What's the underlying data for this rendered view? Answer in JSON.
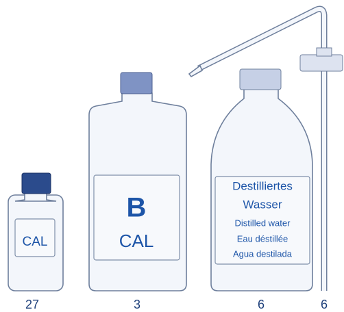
{
  "items": [
    {
      "label": "CAL",
      "number": "27"
    },
    {
      "label_large": "B",
      "label": "CAL",
      "number": "3"
    },
    {
      "label_lines": [
        "Destilliertes",
        "Wasser",
        "Distilled water",
        "Eau déstillée",
        "Agua destilada"
      ],
      "number": "6"
    },
    {
      "number": "6"
    }
  ]
}
